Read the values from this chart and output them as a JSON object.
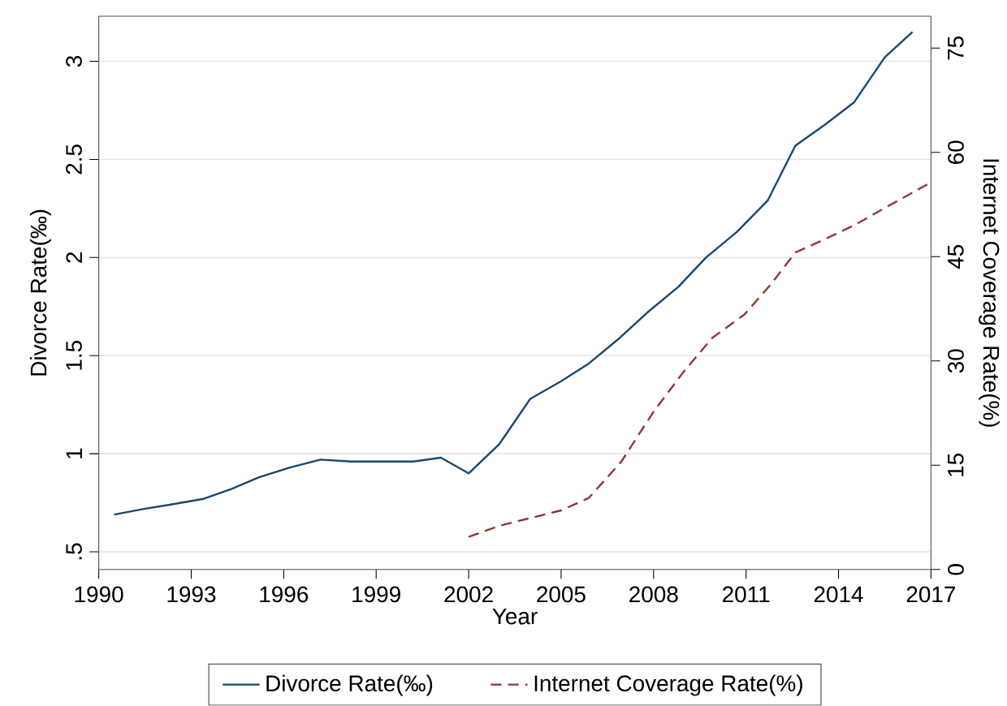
{
  "chart_data": {
    "type": "line",
    "xlabel": "Year",
    "ylabel": "Divorce Rate(‰)",
    "y2label": "Internet Coverage Rate(%)",
    "xlim": [
      1990,
      2017
    ],
    "xticks": [
      1990,
      1993,
      1996,
      1999,
      2002,
      2005,
      2008,
      2011,
      2014,
      2017
    ],
    "ylim": [
      0.41,
      3.23
    ],
    "yticks": [
      {
        "value": 0.5,
        "label": ".5"
      },
      1,
      1.5,
      2,
      2.5,
      3
    ],
    "y2lim": [
      0,
      79.6
    ],
    "y2ticks": [
      0,
      15,
      30,
      45,
      60,
      75
    ],
    "grid": "y",
    "legend": "bottom",
    "marker": "none",
    "series": [
      {
        "name": "Divorce Rate(‰)",
        "color": "#1a476f",
        "line_style": "solid",
        "x": [
          1990.5,
          1991.5,
          1992.3,
          1993.4,
          1994.3,
          1995.2,
          1996.2,
          1997.2,
          1998.2,
          1999.2,
          2000.2,
          2001.1,
          2002.0,
          2003.0,
          2004.0,
          2005.0,
          2005.9,
          2006.9,
          2007.8,
          2008.8,
          2009.7,
          2010.7,
          2011.7,
          2012.6,
          2013.5,
          2014.5,
          2015.5,
          2016.4
        ],
        "values": [
          0.69,
          0.72,
          0.74,
          0.77,
          0.82,
          0.88,
          0.93,
          0.97,
          0.96,
          0.96,
          0.96,
          0.98,
          0.9,
          1.05,
          1.28,
          1.37,
          1.46,
          1.59,
          1.72,
          1.85,
          2.0,
          2.13,
          2.29,
          2.57,
          2.67,
          2.79,
          3.02,
          3.15
        ]
      },
      {
        "name": "Internet Coverage Rate(%)",
        "color": "#90353b",
        "line_style": "dashed",
        "axis": "y2",
        "x": [
          2002.0,
          2003.0,
          2004.0,
          2005.0,
          2005.9,
          2006.95,
          2008.0,
          2008.95,
          2009.9,
          2010.95,
          2011.8,
          2012.6,
          2013.5,
          2014.5,
          2015.5,
          2017.0
        ],
        "values": [
          4.7,
          6.3,
          7.4,
          8.5,
          10.3,
          15.5,
          22.7,
          28.3,
          33.3,
          36.7,
          41,
          45.6,
          47.4,
          49.5,
          52.0,
          55.7
        ]
      }
    ]
  }
}
